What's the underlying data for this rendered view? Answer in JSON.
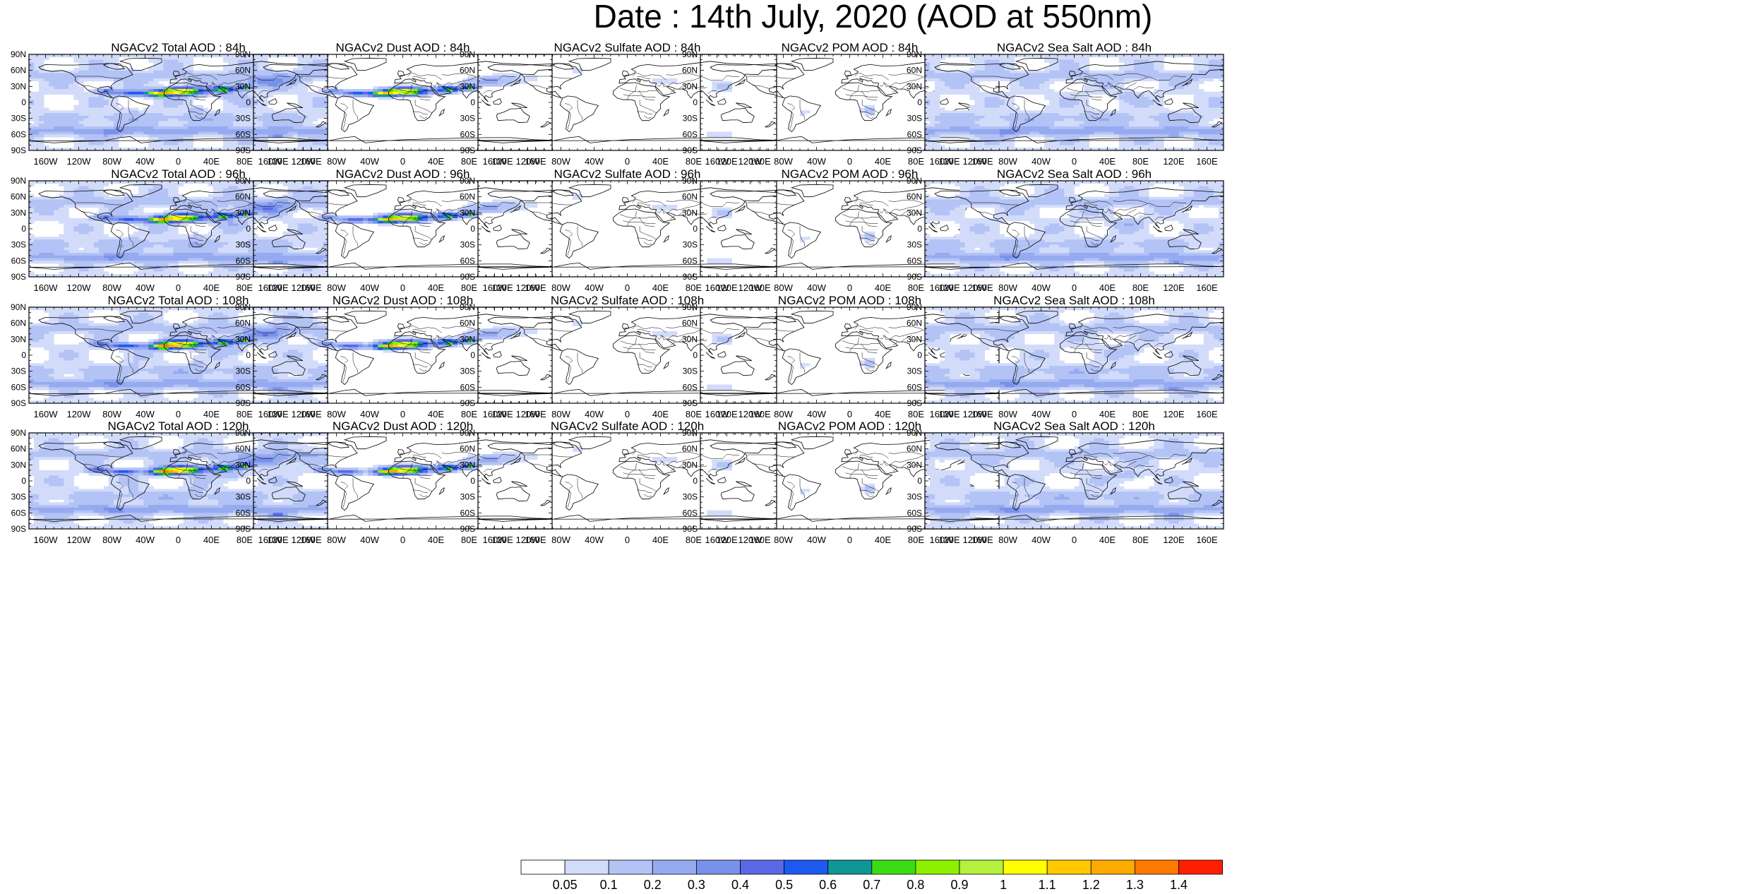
{
  "title": "Date : 14th July, 2020 (AOD at 550nm)",
  "lat_labels": [
    "90N",
    "60N",
    "30N",
    "0",
    "30S",
    "60S",
    "90S"
  ],
  "lon_labels": [
    "160W",
    "120W",
    "80W",
    "40W",
    "0",
    "40E",
    "80E",
    "120E",
    "160E"
  ],
  "lon_values": [
    -160,
    -120,
    -80,
    -40,
    0,
    40,
    80,
    120,
    160
  ],
  "lat_values": [
    90,
    60,
    30,
    0,
    -30,
    -60,
    -90
  ],
  "columns": [
    "Total",
    "Dust",
    "Sulfate",
    "POM",
    "Sea Salt"
  ],
  "panels": [
    {
      "title": "NGACv2 Total AOD : 84h",
      "species": "total",
      "hour": 84
    },
    {
      "title": "NGACv2 Dust AOD : 84h",
      "species": "dust",
      "hour": 84
    },
    {
      "title": "NGACv2 Sulfate AOD : 84h",
      "species": "sulfate",
      "hour": 84
    },
    {
      "title": "NGACv2 POM AOD : 84h",
      "species": "pom",
      "hour": 84
    },
    {
      "title": "NGACv2 Sea Salt AOD : 84h",
      "species": "seasalt",
      "hour": 84
    },
    {
      "title": "NGACv2 Total AOD : 96h",
      "species": "total",
      "hour": 96
    },
    {
      "title": "NGACv2 Dust AOD : 96h",
      "species": "dust",
      "hour": 96
    },
    {
      "title": "NGACv2 Sulfate AOD : 96h",
      "species": "sulfate",
      "hour": 96
    },
    {
      "title": "NGACv2 POM AOD : 96h",
      "species": "pom",
      "hour": 96
    },
    {
      "title": "NGACv2 Sea Salt AOD : 96h",
      "species": "seasalt",
      "hour": 96
    },
    {
      "title": "NGACv2 Total AOD : 108h",
      "species": "total",
      "hour": 108
    },
    {
      "title": "NGACv2 Dust AOD : 108h",
      "species": "dust",
      "hour": 108
    },
    {
      "title": "NGACv2 Sulfate AOD : 108h",
      "species": "sulfate",
      "hour": 108
    },
    {
      "title": "NGACv2 POM AOD : 108h",
      "species": "pom",
      "hour": 108
    },
    {
      "title": "NGACv2 Sea Salt AOD : 108h",
      "species": "seasalt",
      "hour": 108
    },
    {
      "title": "NGACv2 Total AOD : 120h",
      "species": "total",
      "hour": 120
    },
    {
      "title": "NGACv2 Dust AOD : 120h",
      "species": "dust",
      "hour": 120
    },
    {
      "title": "NGACv2 Sulfate AOD : 120h",
      "species": "sulfate",
      "hour": 120
    },
    {
      "title": "NGACv2 POM AOD : 120h",
      "species": "pom",
      "hour": 120
    },
    {
      "title": "NGACv2 Sea Salt  AOD : 120h",
      "species": "seasalt",
      "hour": 120
    }
  ],
  "legend": {
    "labels": [
      "0.05",
      "0.1",
      "0.2",
      "0.3",
      "0.4",
      "0.5",
      "0.6",
      "0.7",
      "0.8",
      "0.9",
      "1",
      "1.1",
      "1.2",
      "1.3",
      "1.4"
    ],
    "colors": [
      "#ffffff",
      "#d2dcfa",
      "#b4c3f5",
      "#96aaf0",
      "#7891eb",
      "#5a69e6",
      "#1e5af0",
      "#0f9696",
      "#3cdc14",
      "#8cf000",
      "#b4f03c",
      "#ffff00",
      "#ffc800",
      "#ffaa00",
      "#ff7800",
      "#ff1e00"
    ]
  },
  "colors": {
    "land_outline": "#000000",
    "frame": "#000000"
  }
}
